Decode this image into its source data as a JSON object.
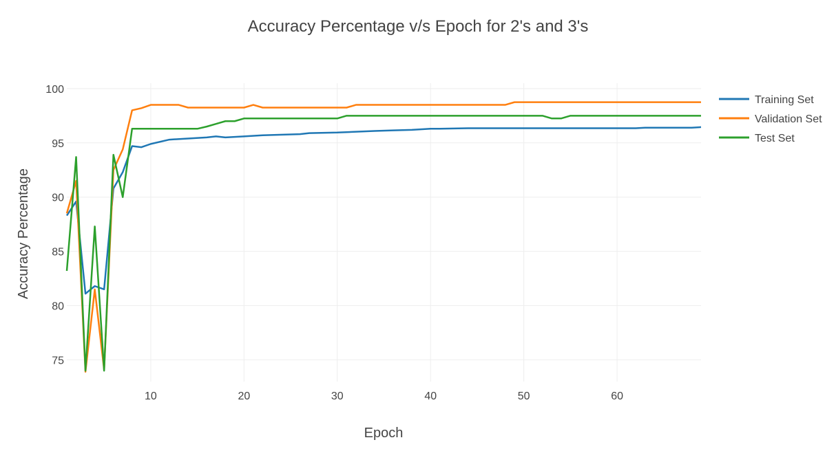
{
  "chart_data": {
    "type": "line",
    "title": "Accuracy Percentage v/s Epoch for 2's and 3's",
    "xlabel": "Epoch",
    "ylabel": "Accuracy Percentage",
    "xlim": [
      1,
      69
    ],
    "ylim": [
      73,
      100.5
    ],
    "x_ticks": [
      10,
      20,
      30,
      40,
      50,
      60
    ],
    "y_ticks": [
      75,
      80,
      85,
      90,
      95,
      100
    ],
    "grid": true,
    "legend_position": "top-right",
    "series": [
      {
        "name": "Training Set",
        "color": "#1f77b4",
        "x": [
          1,
          2,
          3,
          4,
          5,
          6,
          7,
          8,
          9,
          10,
          12,
          14,
          16,
          17,
          18,
          20,
          22,
          26,
          27,
          30,
          34,
          36,
          38,
          40,
          41,
          44,
          46,
          48,
          50,
          54,
          56,
          58,
          60,
          62,
          63,
          65,
          68,
          69
        ],
        "y": [
          88.3,
          89.6,
          81.1,
          81.8,
          81.5,
          90.8,
          92.3,
          94.7,
          94.6,
          94.9,
          95.3,
          95.4,
          95.5,
          95.6,
          95.5,
          95.6,
          95.7,
          95.8,
          95.9,
          95.95,
          96.1,
          96.15,
          96.2,
          96.3,
          96.3,
          96.35,
          96.35,
          96.35,
          96.35,
          96.35,
          96.35,
          96.35,
          96.35,
          96.35,
          96.4,
          96.4,
          96.4,
          96.45
        ]
      },
      {
        "name": "Validation Set",
        "color": "#ff7f0e",
        "x": [
          1,
          2,
          3,
          4,
          5,
          6,
          7,
          8,
          9,
          10,
          11,
          12,
          13,
          14,
          15,
          16,
          17,
          18,
          19,
          20,
          21,
          22,
          23,
          24,
          25,
          26,
          27,
          28,
          29,
          30,
          31,
          32,
          33,
          34,
          35,
          36,
          37,
          38,
          39,
          40,
          41,
          42,
          43,
          44,
          45,
          46,
          47,
          48,
          49,
          50,
          51,
          52,
          53,
          54,
          55,
          56,
          57,
          58,
          59,
          60,
          61,
          62,
          63,
          64,
          65,
          66,
          67,
          68,
          69
        ],
        "y": [
          88.5,
          91.5,
          73.9,
          81.5,
          74.1,
          92.5,
          94.4,
          98.0,
          98.2,
          98.5,
          98.5,
          98.5,
          98.5,
          98.25,
          98.25,
          98.25,
          98.25,
          98.25,
          98.25,
          98.25,
          98.5,
          98.25,
          98.25,
          98.25,
          98.25,
          98.25,
          98.25,
          98.25,
          98.25,
          98.25,
          98.25,
          98.5,
          98.5,
          98.5,
          98.5,
          98.5,
          98.5,
          98.5,
          98.5,
          98.5,
          98.5,
          98.5,
          98.5,
          98.5,
          98.5,
          98.5,
          98.5,
          98.5,
          98.75,
          98.75,
          98.75,
          98.75,
          98.75,
          98.75,
          98.75,
          98.75,
          98.75,
          98.75,
          98.75,
          98.75,
          98.75,
          98.75,
          98.75,
          98.75,
          98.75,
          98.75,
          98.75,
          98.75,
          98.75
        ]
      },
      {
        "name": "Test Set",
        "color": "#2ca02c",
        "x": [
          1,
          2,
          3,
          4,
          5,
          6,
          7,
          8,
          9,
          10,
          12,
          14,
          15,
          16,
          17,
          18,
          19,
          20,
          22,
          24,
          26,
          28,
          30,
          31,
          32,
          34,
          36,
          38,
          40,
          42,
          44,
          46,
          48,
          50,
          52,
          53,
          54,
          55,
          56,
          58,
          60,
          62,
          64,
          66,
          68,
          69
        ],
        "y": [
          83.2,
          93.7,
          74.0,
          87.3,
          74.0,
          93.9,
          90.0,
          96.3,
          96.3,
          96.3,
          96.3,
          96.3,
          96.3,
          96.5,
          96.75,
          97.0,
          97.0,
          97.25,
          97.25,
          97.25,
          97.25,
          97.25,
          97.25,
          97.5,
          97.5,
          97.5,
          97.5,
          97.5,
          97.5,
          97.5,
          97.5,
          97.5,
          97.5,
          97.5,
          97.5,
          97.25,
          97.25,
          97.5,
          97.5,
          97.5,
          97.5,
          97.5,
          97.5,
          97.5,
          97.5,
          97.5
        ]
      }
    ]
  }
}
